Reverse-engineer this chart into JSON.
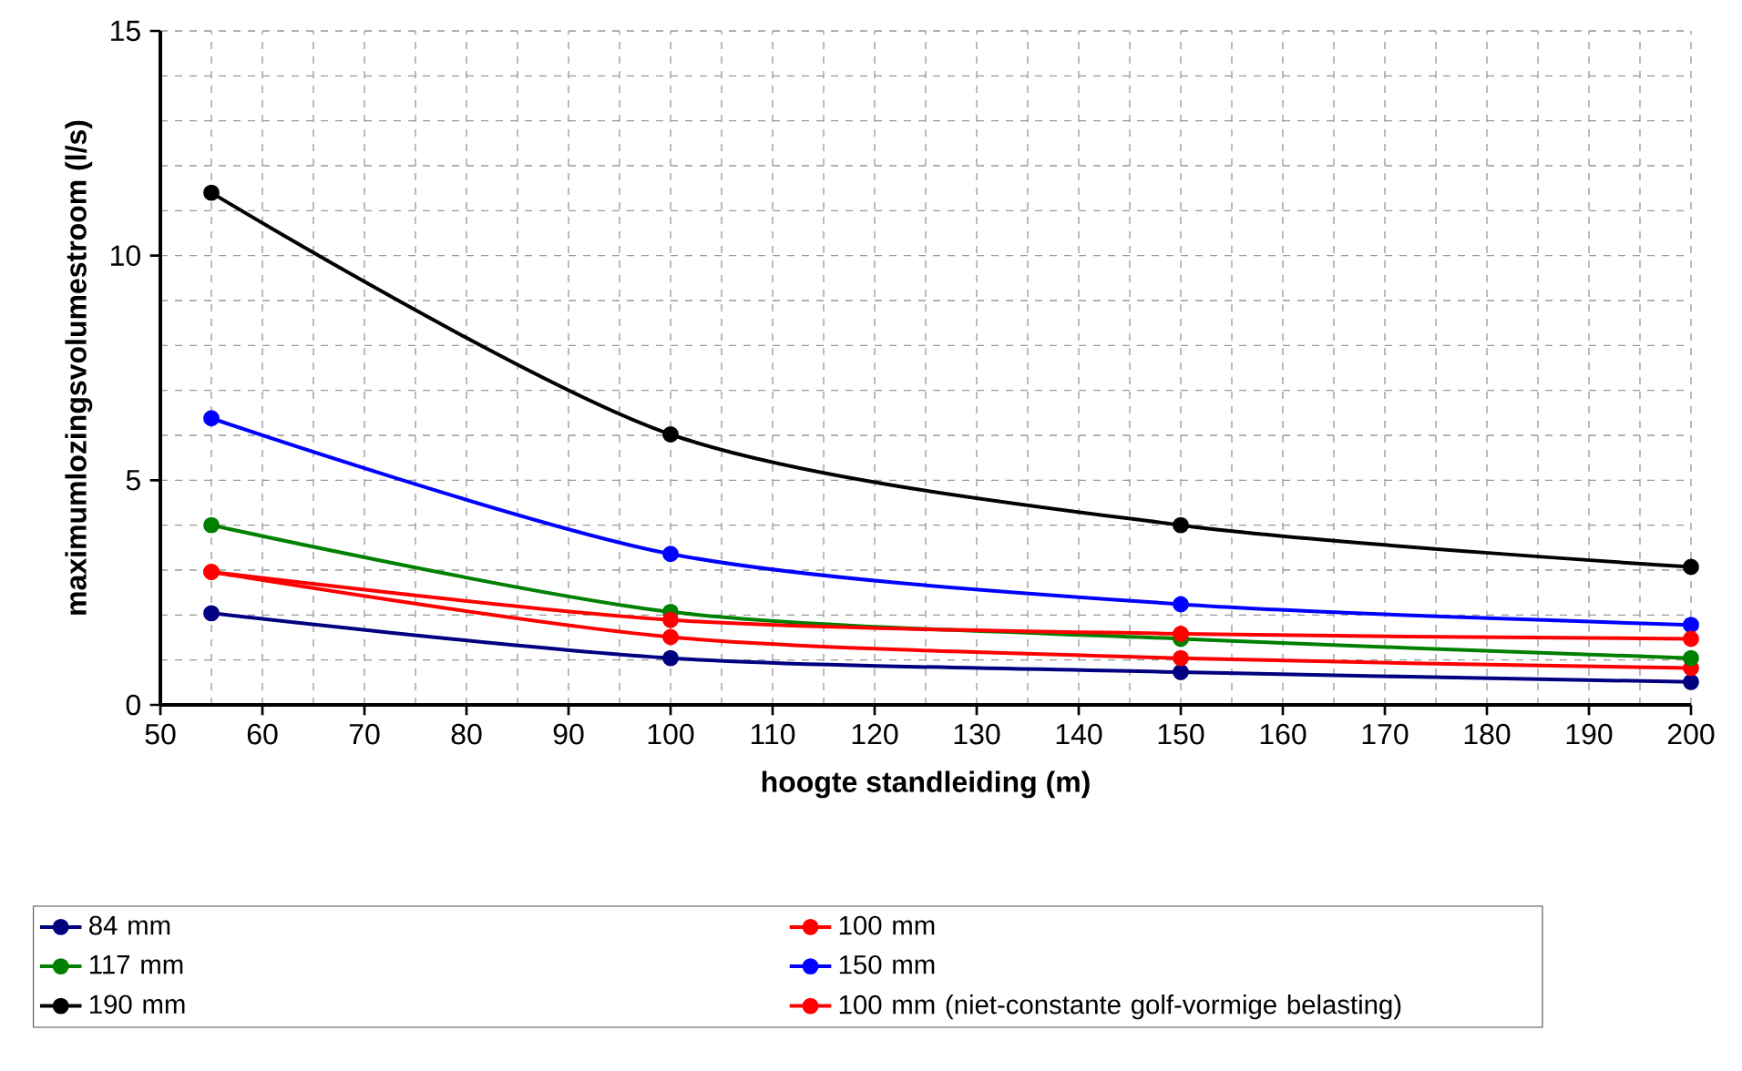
{
  "chart_data": {
    "type": "line",
    "xlabel": "hoogte standleiding (m)",
    "ylabel": "maximumlozingsvolumestroom (l/s)",
    "xlim": [
      50,
      200
    ],
    "xticks": [
      50,
      60,
      70,
      80,
      90,
      100,
      110,
      120,
      130,
      140,
      150,
      160,
      170,
      180,
      190,
      200
    ],
    "ylim": [
      0,
      15
    ],
    "yticks": [
      0,
      5,
      10,
      15
    ],
    "grid": true,
    "legend": "bottom",
    "marker": "circle",
    "line_style": "solid",
    "x": [
      55,
      100,
      150,
      200
    ],
    "series": [
      {
        "name": "84 mm",
        "color": "#000080",
        "values": [
          2.04,
          1.04,
          0.73,
          0.51
        ]
      },
      {
        "name": "100 mm",
        "color": "#ff0000",
        "values": [
          2.96,
          1.51,
          1.04,
          0.82
        ]
      },
      {
        "name": "117 mm",
        "color": "#008000",
        "values": [
          4.0,
          2.07,
          1.47,
          1.04
        ]
      },
      {
        "name": "150 mm",
        "color": "#0000ff",
        "values": [
          6.38,
          3.36,
          2.24,
          1.78
        ]
      },
      {
        "name": "190 mm",
        "color": "#000000",
        "values": [
          11.4,
          6.02,
          4.0,
          3.07
        ]
      },
      {
        "name": "100 mm (niet-constante golf-vormige belasting)",
        "color": "#ff0000",
        "values": [
          2.96,
          1.89,
          1.58,
          1.47
        ]
      }
    ]
  }
}
